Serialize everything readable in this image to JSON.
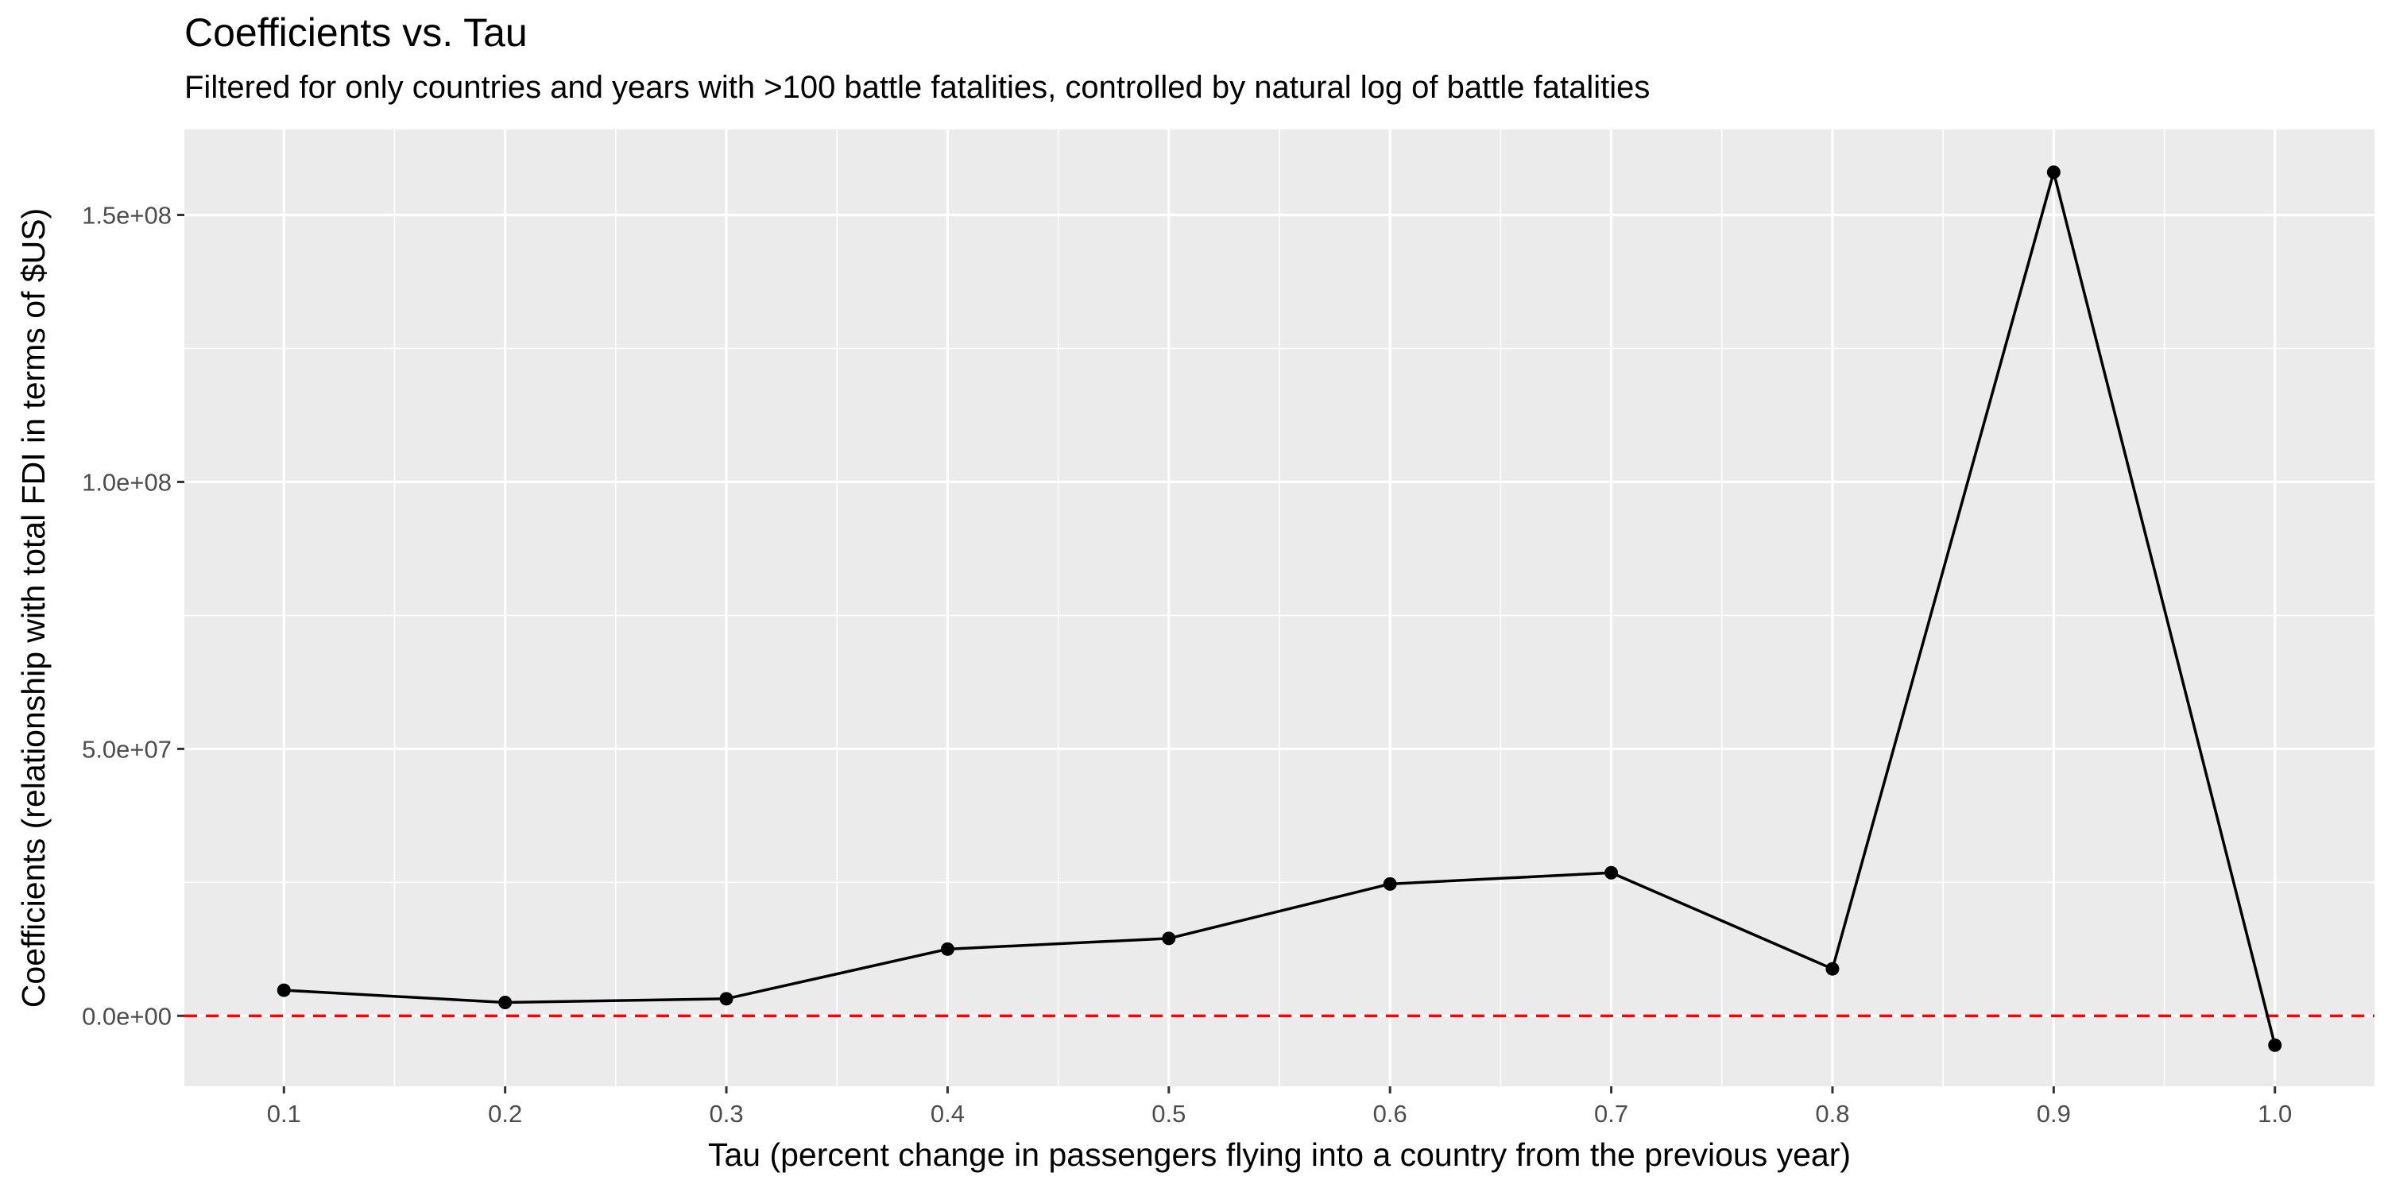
{
  "chart_data": {
    "type": "line",
    "title": "Coefficients vs. Tau",
    "subtitle": "Filtered for only countries and years with >100 battle fatalities, controlled by natural log of battle fatalities",
    "xlabel": "Tau (percent change in passengers flying into a country from the previous year)",
    "ylabel": "Coefficients (relationship with total FDI in terms of $US)",
    "x": [
      0.1,
      0.2,
      0.3,
      0.4,
      0.5,
      0.6,
      0.7,
      0.8,
      0.9,
      1.0
    ],
    "y": [
      4800000,
      2500000,
      3200000,
      12500000,
      14500000,
      24700000,
      26800000,
      8800000,
      158000000,
      -5500000
    ],
    "x_ticks": [
      0.1,
      0.2,
      0.3,
      0.4,
      0.5,
      0.6,
      0.7,
      0.8,
      0.9,
      1.0
    ],
    "x_tick_labels": [
      "0.1",
      "0.2",
      "0.3",
      "0.4",
      "0.5",
      "0.6",
      "0.7",
      "0.8",
      "0.9",
      "1.0"
    ],
    "y_ticks": [
      0,
      50000000,
      100000000,
      150000000
    ],
    "y_tick_labels": [
      "0.0e+00",
      "5.0e+07",
      "1.0e+08",
      "1.5e+08"
    ],
    "xlim": [
      0.055,
      1.045
    ],
    "ylim": [
      -13200000,
      166000000
    ],
    "reference_line": {
      "y": 0,
      "style": "dashed",
      "color": "#ff0000"
    },
    "grid": true,
    "colors": {
      "panel": "#ebebeb",
      "grid": "#ffffff",
      "line": "#000000",
      "point": "#000000"
    }
  }
}
